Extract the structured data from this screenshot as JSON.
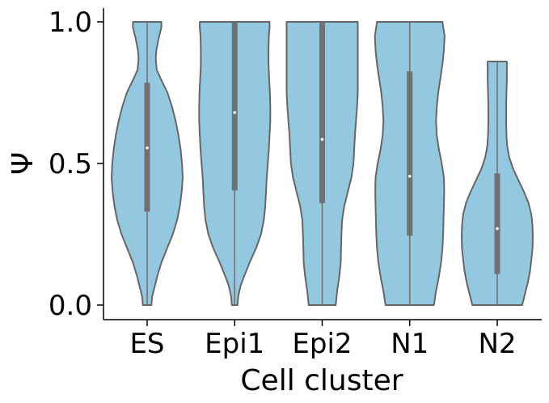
{
  "chart_data": {
    "type": "violin",
    "title": "",
    "xlabel": "Cell cluster",
    "ylabel": "Ψ",
    "ylim": [
      0.0,
      1.0
    ],
    "yticks": [
      {
        "value": 0.0,
        "label": "0.0"
      },
      {
        "value": 0.5,
        "label": "0.5"
      },
      {
        "value": 1.0,
        "label": "1.0"
      }
    ],
    "categories": [
      "ES",
      "Epi1",
      "Epi2",
      "N1",
      "N2"
    ],
    "grid": false,
    "legend": "none",
    "colors": {
      "fill": "#93c8e0",
      "edge": "#666666",
      "box": "#717171",
      "median": "#ffffff",
      "axis": "#000000"
    },
    "violins": [
      {
        "category": "ES",
        "min": 0.0,
        "q1": 0.33,
        "median": 0.555,
        "q3": 0.785,
        "max": 1.0,
        "density": [
          [
            0.0,
            0.12
          ],
          [
            0.03,
            0.14
          ],
          [
            0.06,
            0.2
          ],
          [
            0.1,
            0.28
          ],
          [
            0.15,
            0.4
          ],
          [
            0.2,
            0.56
          ],
          [
            0.25,
            0.72
          ],
          [
            0.3,
            0.84
          ],
          [
            0.35,
            0.92
          ],
          [
            0.4,
            0.97
          ],
          [
            0.45,
            1.0
          ],
          [
            0.5,
            0.98
          ],
          [
            0.55,
            0.94
          ],
          [
            0.6,
            0.88
          ],
          [
            0.65,
            0.8
          ],
          [
            0.7,
            0.7
          ],
          [
            0.75,
            0.57
          ],
          [
            0.8,
            0.38
          ],
          [
            0.83,
            0.27
          ],
          [
            0.87,
            0.24
          ],
          [
            0.9,
            0.26
          ],
          [
            0.94,
            0.32
          ],
          [
            0.98,
            0.4
          ],
          [
            1.0,
            0.4
          ]
        ]
      },
      {
        "category": "Epi1",
        "min": 0.0,
        "q1": 0.405,
        "median": 0.68,
        "q3": 1.0,
        "max": 1.0,
        "density": [
          [
            0.0,
            0.08
          ],
          [
            0.03,
            0.1
          ],
          [
            0.07,
            0.17
          ],
          [
            0.1,
            0.26
          ],
          [
            0.15,
            0.42
          ],
          [
            0.2,
            0.6
          ],
          [
            0.25,
            0.74
          ],
          [
            0.3,
            0.82
          ],
          [
            0.35,
            0.86
          ],
          [
            0.4,
            0.88
          ],
          [
            0.45,
            0.9
          ],
          [
            0.5,
            0.93
          ],
          [
            0.55,
            0.96
          ],
          [
            0.6,
            0.98
          ],
          [
            0.65,
            1.0
          ],
          [
            0.7,
            1.0
          ],
          [
            0.75,
            0.99
          ],
          [
            0.8,
            0.97
          ],
          [
            0.85,
            0.95
          ],
          [
            0.9,
            0.95
          ],
          [
            0.95,
            0.96
          ],
          [
            0.98,
            0.98
          ],
          [
            1.0,
            0.98
          ]
        ]
      },
      {
        "category": "Epi2",
        "min": 0.0,
        "q1": 0.36,
        "median": 0.585,
        "q3": 1.0,
        "max": 1.0,
        "density": [
          [
            0.0,
            0.38
          ],
          [
            0.05,
            0.42
          ],
          [
            0.1,
            0.48
          ],
          [
            0.15,
            0.52
          ],
          [
            0.2,
            0.53
          ],
          [
            0.25,
            0.54
          ],
          [
            0.3,
            0.56
          ],
          [
            0.35,
            0.62
          ],
          [
            0.4,
            0.72
          ],
          [
            0.45,
            0.82
          ],
          [
            0.5,
            0.88
          ],
          [
            0.55,
            0.9
          ],
          [
            0.6,
            0.92
          ],
          [
            0.65,
            0.95
          ],
          [
            0.7,
            0.98
          ],
          [
            0.75,
            1.0
          ],
          [
            0.8,
            1.0
          ],
          [
            0.85,
            1.0
          ],
          [
            0.9,
            1.0
          ],
          [
            0.95,
            1.0
          ],
          [
            1.0,
            1.0
          ]
        ]
      },
      {
        "category": "N1",
        "min": 0.0,
        "q1": 0.245,
        "median": 0.455,
        "q3": 0.825,
        "max": 1.0,
        "density": [
          [
            0.0,
            0.68
          ],
          [
            0.05,
            0.74
          ],
          [
            0.1,
            0.82
          ],
          [
            0.15,
            0.88
          ],
          [
            0.2,
            0.92
          ],
          [
            0.25,
            0.94
          ],
          [
            0.3,
            0.95
          ],
          [
            0.35,
            0.96
          ],
          [
            0.4,
            0.97
          ],
          [
            0.45,
            0.96
          ],
          [
            0.5,
            0.9
          ],
          [
            0.55,
            0.82
          ],
          [
            0.6,
            0.76
          ],
          [
            0.65,
            0.74
          ],
          [
            0.7,
            0.76
          ],
          [
            0.75,
            0.8
          ],
          [
            0.8,
            0.86
          ],
          [
            0.85,
            0.92
          ],
          [
            0.9,
            0.96
          ],
          [
            0.95,
            0.98
          ],
          [
            1.0,
            0.92
          ]
        ]
      },
      {
        "category": "N2",
        "min": 0.0,
        "q1": 0.11,
        "median": 0.27,
        "q3": 0.465,
        "max": 0.86,
        "density": [
          [
            0.0,
            0.7
          ],
          [
            0.04,
            0.78
          ],
          [
            0.08,
            0.86
          ],
          [
            0.12,
            0.92
          ],
          [
            0.16,
            0.96
          ],
          [
            0.2,
            0.99
          ],
          [
            0.24,
            1.0
          ],
          [
            0.28,
            0.99
          ],
          [
            0.32,
            0.96
          ],
          [
            0.36,
            0.88
          ],
          [
            0.4,
            0.75
          ],
          [
            0.44,
            0.6
          ],
          [
            0.48,
            0.45
          ],
          [
            0.52,
            0.34
          ],
          [
            0.56,
            0.28
          ],
          [
            0.6,
            0.26
          ],
          [
            0.65,
            0.25
          ],
          [
            0.7,
            0.25
          ],
          [
            0.75,
            0.26
          ],
          [
            0.8,
            0.27
          ],
          [
            0.84,
            0.27
          ],
          [
            0.86,
            0.27
          ]
        ]
      }
    ]
  }
}
